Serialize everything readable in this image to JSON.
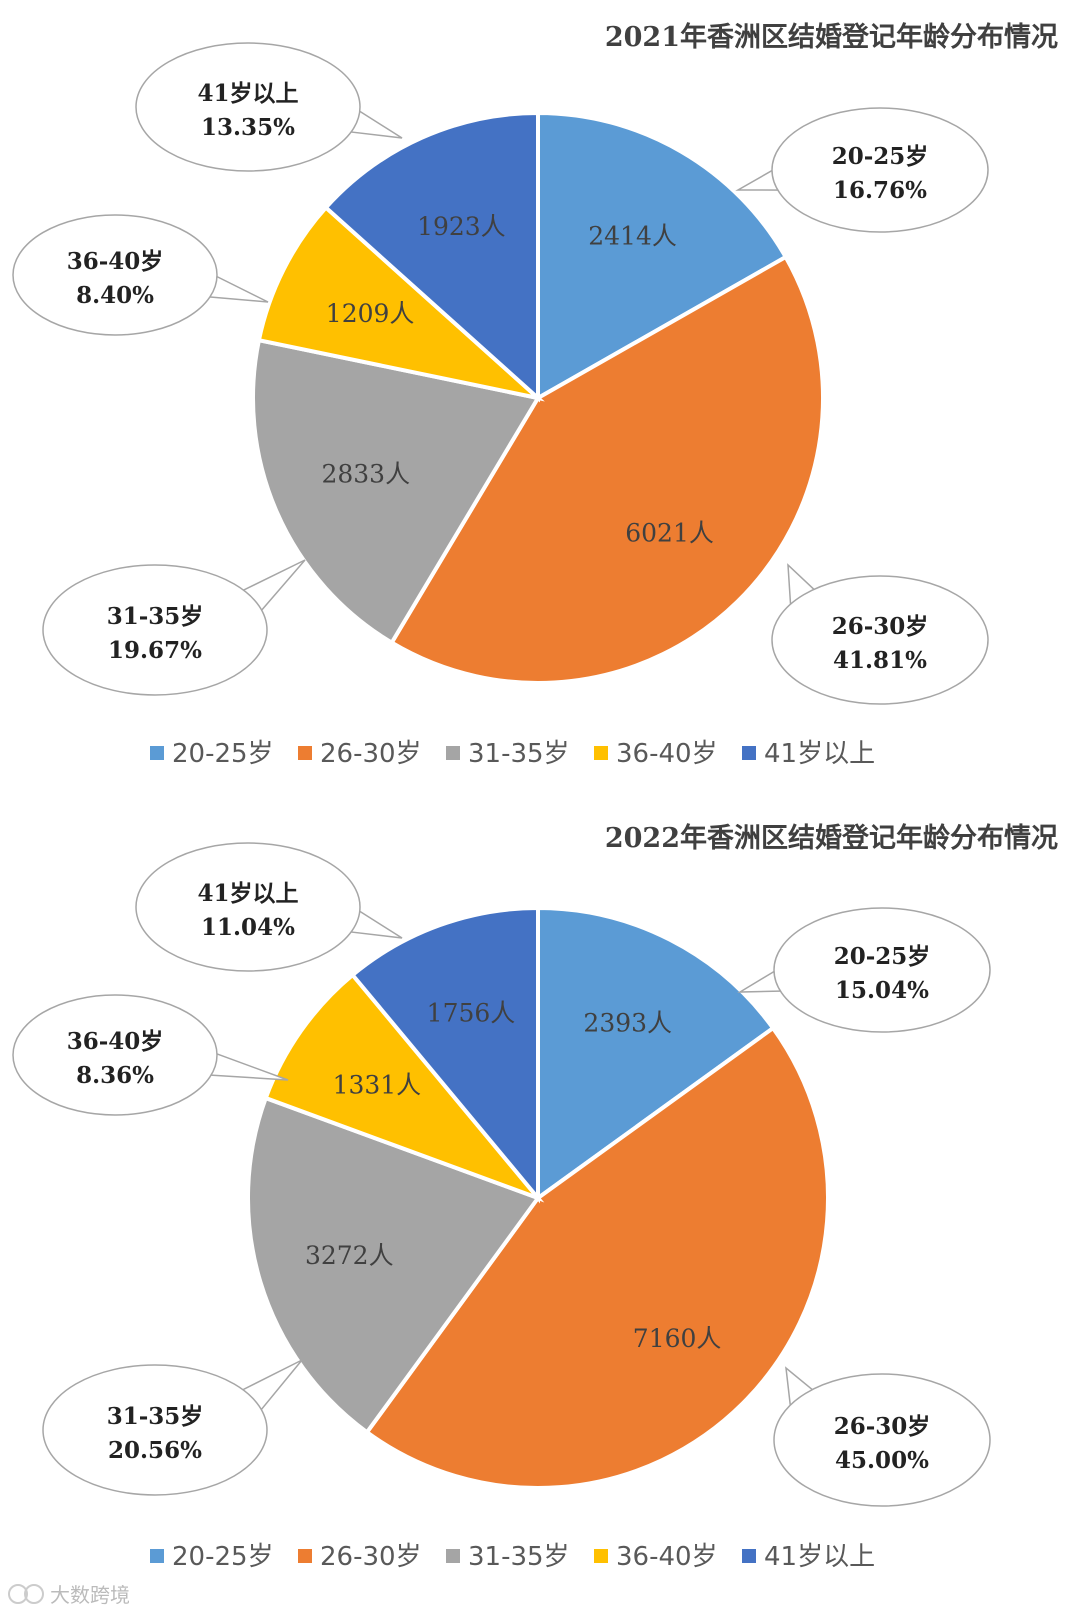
{
  "chart_data": [
    {
      "type": "pie",
      "title": "2021年香洲区结婚登记年龄分布情况",
      "categories": [
        "20-25岁",
        "26-30岁",
        "31-35岁",
        "36-40岁",
        "41岁以上"
      ],
      "values": [
        2414,
        6021,
        2833,
        1209,
        1923
      ],
      "value_labels": [
        "2414人",
        "6021人",
        "2833人",
        "1209人",
        "1923人"
      ],
      "percent_labels": [
        "16.76%",
        "41.81%",
        "19.67%",
        "8.40%",
        "13.35%"
      ],
      "colors": [
        "#5B9BD5",
        "#ED7D31",
        "#A5A5A5",
        "#FFC000",
        "#4472C4"
      ],
      "legend": "bottom"
    },
    {
      "type": "pie",
      "title": "2022年香洲区结婚登记年龄分布情况",
      "categories": [
        "20-25岁",
        "26-30岁",
        "31-35岁",
        "36-40岁",
        "41岁以上"
      ],
      "values": [
        2393,
        7160,
        3272,
        1331,
        1756
      ],
      "value_labels": [
        "2393人",
        "7160人",
        "3272人",
        "1331人",
        "1756人"
      ],
      "percent_labels": [
        "15.04%",
        "45.00%",
        "20.56%",
        "8.36%",
        "11.04%"
      ],
      "colors": [
        "#5B9BD5",
        "#ED7D31",
        "#A5A5A5",
        "#FFC000",
        "#4472C4"
      ],
      "legend": "bottom"
    }
  ],
  "watermark": "大数跨境"
}
